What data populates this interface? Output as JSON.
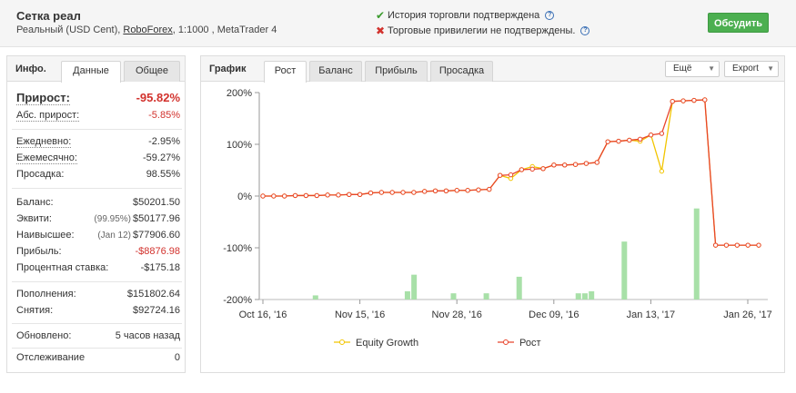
{
  "header": {
    "title": "Сетка реал",
    "sub_prefix": "Реальный (USD Cent), ",
    "broker": "RoboForex",
    "sub_suffix": ", 1:1000 , MetaTrader 4",
    "status_ok": "История торговли подтверждена",
    "status_no": "Торговые привилегии не подтверждены.",
    "discuss_button": "Обсудить"
  },
  "left": {
    "title": "Инфо.",
    "tabs": [
      "Данные",
      "Общее"
    ],
    "growth_label": "Прирост:",
    "growth_value": "-95.82%",
    "abs_label": "Абс. прирост:",
    "abs_value": "-5.85%",
    "daily_label": "Ежедневно:",
    "daily_value": "-2.95%",
    "monthly_label": "Ежемесячно:",
    "monthly_value": "-59.27%",
    "drawdown_label": "Просадка:",
    "drawdown_value": "98.55%",
    "balance_label": "Баланс:",
    "balance_value": "$50201.50",
    "equity_label": "Эквити:",
    "equity_note": "(99.95%)",
    "equity_value": "$50177.96",
    "highest_label": "Наивысшее:",
    "highest_note": "(Jan 12)",
    "highest_value": "$77906.60",
    "profit_label": "Прибыль:",
    "profit_value": "-$8876.98",
    "interest_label": "Процентная ставка:",
    "interest_value": "-$175.18",
    "deposits_label": "Пополнения:",
    "deposits_value": "$151802.64",
    "withdrawals_label": "Снятия:",
    "withdrawals_value": "$92724.16",
    "updated_label": "Обновлено:",
    "updated_value": "5 часов назад",
    "tracking_label": "Отслеживание",
    "tracking_value": "0"
  },
  "right": {
    "title": "График",
    "tabs": [
      "Рост",
      "Баланс",
      "Прибыль",
      "Просадка"
    ],
    "more_dropdown": "Ещё",
    "export_dropdown": "Export"
  },
  "colors": {
    "growth_line": "#e8452c",
    "equity_line": "#f2c500",
    "bars": "#a8e0a8",
    "discuss_button": "#4caf50"
  },
  "chart_data": {
    "type": "line",
    "y_ticks": [
      "200%",
      "100%",
      "0%",
      "-100%",
      "-200%"
    ],
    "ylim": [
      -200,
      200
    ],
    "x_ticks": [
      "Oct 16, '16",
      "Nov 15, '16",
      "Nov 28, '16",
      "Dec 09, '16",
      "Jan 13, '17",
      "Jan 26, '17"
    ],
    "legend": [
      "Equity Growth",
      "Рост"
    ],
    "legend_position": "bottom",
    "series": [
      {
        "name": "Рост",
        "values": [
          0,
          0,
          0,
          1,
          1,
          1,
          2,
          2,
          3,
          3,
          6,
          7,
          7,
          7,
          7,
          9,
          10,
          10,
          11,
          11,
          12,
          13,
          40,
          41,
          51,
          52,
          53,
          60,
          60,
          61,
          63,
          65,
          105,
          106,
          108,
          110,
          118,
          121,
          183,
          184,
          185,
          186,
          -95,
          -95,
          -95,
          -95,
          -95
        ]
      },
      {
        "name": "Equity Growth",
        "values": [
          0,
          0,
          0,
          1,
          1,
          1,
          2,
          2,
          3,
          3,
          6,
          7,
          7,
          7,
          7,
          9,
          10,
          10,
          11,
          11,
          12,
          13,
          40,
          34,
          51,
          57,
          53,
          60,
          60,
          61,
          63,
          65,
          105,
          106,
          108,
          106,
          118,
          48,
          183,
          184,
          185,
          186,
          -95,
          -95,
          -95,
          -95,
          -95
        ]
      }
    ],
    "bars": [
      0,
      0,
      0,
      0,
      0,
      0,
      0,
      0,
      2,
      0,
      0,
      0,
      0,
      0,
      0,
      0,
      0,
      0,
      0,
      0,
      0,
      0,
      4,
      12,
      0,
      0,
      0,
      0,
      0,
      3,
      0,
      0,
      0,
      0,
      3,
      0,
      0,
      0,
      0,
      11,
      0,
      0,
      0,
      0,
      0,
      0,
      0,
      0,
      3,
      3,
      4,
      0,
      0,
      0,
      0,
      28,
      0,
      0,
      0,
      0,
      0,
      0,
      0,
      0,
      0,
      0,
      44,
      0,
      0,
      0,
      0,
      0,
      0,
      0,
      0,
      0,
      0
    ]
  }
}
